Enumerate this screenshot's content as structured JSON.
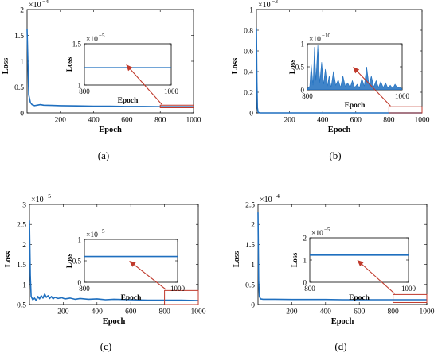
{
  "colors": {
    "line": "#1f6fbf",
    "zoom": "#c0392b",
    "axis": "#000000",
    "background": "#ffffff"
  },
  "chart_data": [
    {
      "type": "line",
      "caption": "(a)",
      "xlabel": "Epoch",
      "ylabel": "Loss",
      "multiplier": "×10",
      "exponent": "−4",
      "xlim": [
        0,
        1000
      ],
      "ylim": [
        0,
        2
      ],
      "xticks": [
        "200",
        "400",
        "600",
        "800",
        "1000"
      ],
      "yticks": [
        "0",
        "0.5",
        "1",
        "1.5",
        "2"
      ],
      "series": [
        {
          "x": [
            0,
            10,
            20,
            30,
            45,
            60,
            80,
            100,
            150,
            200,
            300,
            400,
            500,
            600,
            700,
            800,
            900,
            1000
          ],
          "y": [
            1.62,
            0.35,
            0.2,
            0.16,
            0.14,
            0.15,
            0.16,
            0.15,
            0.145,
            0.14,
            0.135,
            0.13,
            0.13,
            0.125,
            0.125,
            0.12,
            0.12,
            0.12
          ]
        }
      ],
      "zoom_window": {
        "x": [
          800,
          1000
        ],
        "y": [
          0.1,
          0.15
        ]
      },
      "inset": {
        "xlabel": "Epoch",
        "ylabel": "Loss",
        "multiplier": "×10",
        "exponent": "−5",
        "xlim": [
          800,
          1000
        ],
        "ylim": [
          1,
          1.5
        ],
        "xticks": [
          "800",
          "1000"
        ],
        "yticks": [
          "1",
          "1.5"
        ],
        "series": [
          {
            "x": [
              800,
              1000
            ],
            "y": [
              1.21,
              1.21
            ]
          }
        ]
      }
    },
    {
      "type": "line",
      "caption": "(b)",
      "xlabel": "Epoch",
      "ylabel": "Loss",
      "multiplier": "×10",
      "exponent": "−3",
      "xlim": [
        0,
        1000
      ],
      "ylim": [
        0,
        1
      ],
      "xticks": [
        "200",
        "400",
        "600",
        "800",
        "1000"
      ],
      "yticks": [
        "0",
        "0.2",
        "0.4",
        "0.6",
        "0.8",
        "1"
      ],
      "series": [
        {
          "x": [
            0,
            3,
            6,
            10,
            20,
            1000
          ],
          "y": [
            0.82,
            0.3,
            0.05,
            0.005,
            0,
            0
          ]
        }
      ],
      "zoom_window": {
        "x": [
          800,
          1000
        ],
        "y": [
          0,
          0.06
        ]
      },
      "inset": {
        "xlabel": "Epoch",
        "ylabel": "Loss",
        "multiplier": "×10",
        "exponent": "−10",
        "xlim": [
          800,
          1000
        ],
        "ylim": [
          0,
          1
        ],
        "xticks": [
          "800",
          "1000"
        ],
        "yticks": [
          "0",
          "0.5",
          "1"
        ],
        "series": [
          {
            "x": [
              800,
              805,
              808,
              812,
              815,
              818,
              822,
              826,
              830,
              834,
              838,
              842,
              846,
              850,
              855,
              860,
              865,
              870,
              875,
              880,
              885,
              890,
              895,
              900,
              905,
              910,
              915,
              920,
              925,
              930,
              935,
              940,
              945,
              950,
              955,
              960,
              965,
              970,
              975,
              980,
              985,
              990,
              995,
              1000
            ],
            "y": [
              0.02,
              0.08,
              0.55,
              0.1,
              0.93,
              0.2,
              0.97,
              0.15,
              0.6,
              0.12,
              0.45,
              0.08,
              0.3,
              0.05,
              0.4,
              0.1,
              0.22,
              0.05,
              0.3,
              0.08,
              0.15,
              0.05,
              0.2,
              0.05,
              0.12,
              0.04,
              0.25,
              0.08,
              0.5,
              0.1,
              0.3,
              0.06,
              0.2,
              0.05,
              0.18,
              0.05,
              0.15,
              0.04,
              0.1,
              0.03,
              0.12,
              0.04,
              0.06,
              0.02
            ]
          }
        ]
      }
    },
    {
      "type": "line",
      "caption": "(c)",
      "xlabel": "Epoch",
      "ylabel": "Loss",
      "multiplier": "×10",
      "exponent": "−5",
      "xlim": [
        0,
        1000
      ],
      "ylim": [
        0.5,
        3
      ],
      "xticks": [
        "200",
        "400",
        "600",
        "800",
        "1000"
      ],
      "yticks": [
        "0.5",
        "1",
        "1.5",
        "2",
        "2.5",
        "3"
      ],
      "series": [
        {
          "x": [
            0,
            5,
            10,
            20,
            30,
            40,
            50,
            60,
            70,
            80,
            90,
            100,
            110,
            120,
            130,
            140,
            150,
            170,
            190,
            210,
            240,
            270,
            300,
            350,
            400,
            450,
            500,
            600,
            700,
            800,
            900,
            1000
          ],
          "y": [
            2.6,
            1.2,
            0.7,
            0.62,
            0.66,
            0.6,
            0.7,
            0.64,
            0.72,
            0.66,
            0.76,
            0.68,
            0.72,
            0.65,
            0.7,
            0.64,
            0.68,
            0.65,
            0.67,
            0.64,
            0.66,
            0.63,
            0.65,
            0.63,
            0.64,
            0.62,
            0.63,
            0.62,
            0.61,
            0.61,
            0.61,
            0.6
          ]
        }
      ],
      "zoom_window": {
        "x": [
          800,
          1000
        ],
        "y": [
          0.5,
          0.85
        ]
      },
      "inset": {
        "xlabel": "Epoch",
        "ylabel": "Loss",
        "multiplier": "×10",
        "exponent": "−5",
        "xlim": [
          800,
          1000
        ],
        "ylim": [
          0,
          1
        ],
        "xticks": [
          "800",
          "1000"
        ],
        "yticks": [
          "0",
          "0.5",
          "1"
        ],
        "series": [
          {
            "x": [
              800,
              1000
            ],
            "y": [
              0.6,
              0.6
            ]
          }
        ]
      }
    },
    {
      "type": "line",
      "caption": "(d)",
      "xlabel": "Epoch",
      "ylabel": "Loss",
      "multiplier": "×10",
      "exponent": "−4",
      "xlim": [
        0,
        1000
      ],
      "ylim": [
        0,
        2.5
      ],
      "xticks": [
        "200",
        "400",
        "600",
        "800",
        "1000"
      ],
      "yticks": [
        "0",
        "0.5",
        "1",
        "1.5",
        "2",
        "2.5"
      ],
      "series": [
        {
          "x": [
            0,
            4,
            8,
            15,
            30,
            60,
            100,
            200,
            300,
            400,
            500,
            600,
            700,
            800,
            900,
            1000
          ],
          "y": [
            2.3,
            0.6,
            0.2,
            0.14,
            0.13,
            0.13,
            0.13,
            0.125,
            0.125,
            0.125,
            0.12,
            0.12,
            0.12,
            0.12,
            0.12,
            0.12
          ]
        }
      ],
      "zoom_window": {
        "x": [
          800,
          1000
        ],
        "y": [
          0.05,
          0.25
        ]
      },
      "inset": {
        "xlabel": "Epoch",
        "ylabel": "Loss",
        "multiplier": "×10",
        "exponent": "−5",
        "xlim": [
          800,
          1000
        ],
        "ylim": [
          0,
          2
        ],
        "xticks": [
          "800",
          "1000"
        ],
        "yticks": [
          "0",
          "1",
          "2"
        ],
        "series": [
          {
            "x": [
              800,
              1000
            ],
            "y": [
              1.22,
              1.22
            ]
          }
        ]
      }
    }
  ]
}
